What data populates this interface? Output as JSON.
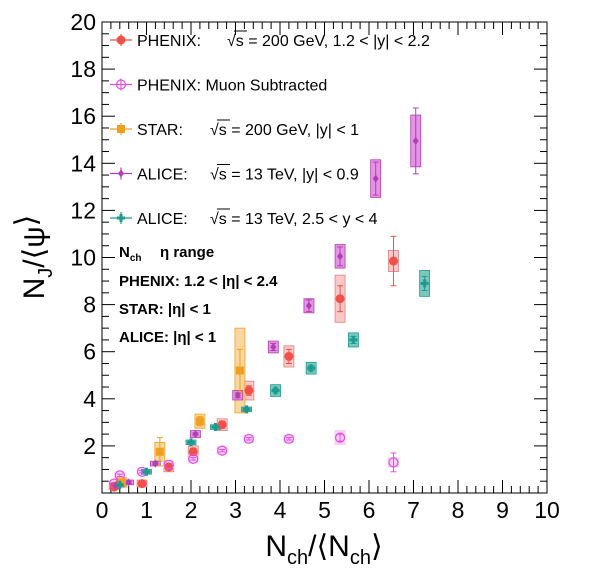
{
  "chart_data": {
    "type": "scatter",
    "xlabel": "N_ch/⟨N_ch⟩",
    "ylabel": "N_J/ψ/⟨N_J/ψ⟩",
    "xlim": [
      0,
      10
    ],
    "ylim": [
      0,
      20
    ],
    "x_ticks": [
      "0",
      "1",
      "2",
      "3",
      "4",
      "5",
      "6",
      "7",
      "8",
      "9",
      "10"
    ],
    "y_ticks": [
      "2",
      "4",
      "6",
      "8",
      "10",
      "12",
      "14",
      "16",
      "18",
      "20"
    ],
    "grid": false,
    "legend_position": "top-left",
    "colors": {
      "phenix": "#f0504a",
      "phenix_muon": "#e050e0",
      "star": "#f0a020",
      "alice_mid": "#b040b0",
      "alice_fwd": "#209a90",
      "phenix_box_fill": "#f8c0c0",
      "phenix_box_edge": "#e08080",
      "muon_box_fill": "#f8c8f8",
      "star_box_fill": "#f8d090",
      "alice_mid_box_fill": "#e080e0",
      "alice_fwd_box_fill": "#60c0b0"
    },
    "legend": [
      {
        "series": "phenix",
        "label_prefix": "PHENIX:",
        "label_rest": "√s = 200 GeV, 1.2 < |y| < 2.2"
      },
      {
        "series": "phenix_muon",
        "label_prefix": "PHENIX: Muon Subtracted",
        "label_rest": ""
      },
      {
        "series": "star",
        "label_prefix": "STAR:",
        "label_rest": "√s = 200 GeV, |y| < 1"
      },
      {
        "series": "alice_mid",
        "label_prefix": "ALICE:",
        "label_rest": "√s = 13 TeV, |y| < 0.9"
      },
      {
        "series": "alice_fwd",
        "label_prefix": "ALICE:",
        "label_rest": "√s = 13 TeV, 2.5 < y < 4"
      }
    ],
    "eta_table": {
      "header_nch": "N_ch",
      "header_range": "η range",
      "rows": [
        "PHENIX: 1.2 < |η| < 2.4",
        "STAR: |η| < 1",
        "ALICE: |η| < 1"
      ]
    },
    "series": [
      {
        "key": "phenix",
        "marker": "filled-circle",
        "points": [
          {
            "x": 0.27,
            "y": 0.25,
            "ey": 0.05,
            "sy": 0.1
          },
          {
            "x": 0.4,
            "y": 0.4,
            "ey": 0.05,
            "sy": 0.1
          },
          {
            "x": 0.9,
            "y": 0.4,
            "ey": 0.1,
            "sy": 0.15
          },
          {
            "x": 1.5,
            "y": 1.1,
            "ey": 0.1,
            "sy": 0.2
          },
          {
            "x": 2.05,
            "y": 1.75,
            "ey": 0.15,
            "sy": 0.25
          },
          {
            "x": 2.7,
            "y": 2.9,
            "ey": 0.15,
            "sy": 0.25
          },
          {
            "x": 3.3,
            "y": 4.35,
            "ey": 0.2,
            "sy": 0.4
          },
          {
            "x": 4.2,
            "y": 5.8,
            "ey": 0.3,
            "sy": 0.45
          },
          {
            "x": 5.35,
            "y": 8.25,
            "ey": 0.55,
            "sy": 1.0
          },
          {
            "x": 6.55,
            "y": 9.85,
            "ey": 1.05,
            "sy": 0.45
          }
        ]
      },
      {
        "key": "phenix_muon",
        "marker": "open-circle",
        "points": [
          {
            "x": 0.27,
            "y": 0.4,
            "ey": 0.05,
            "sy": 0.15
          },
          {
            "x": 0.4,
            "y": 0.75,
            "ey": 0.05,
            "sy": 0.15
          },
          {
            "x": 0.9,
            "y": 0.9,
            "ey": 0.05,
            "sy": 0.15
          },
          {
            "x": 1.5,
            "y": 1.2,
            "ey": 0.05,
            "sy": 0.15
          },
          {
            "x": 2.05,
            "y": 1.45,
            "ey": 0.05,
            "sy": 0.15
          },
          {
            "x": 2.7,
            "y": 1.8,
            "ey": 0.05,
            "sy": 0.15
          },
          {
            "x": 3.3,
            "y": 2.3,
            "ey": 0.05,
            "sy": 0.15
          },
          {
            "x": 4.2,
            "y": 2.3,
            "ey": 0.05,
            "sy": 0.15
          },
          {
            "x": 5.35,
            "y": 2.35,
            "ey": 0.15,
            "sy": 0.3
          },
          {
            "x": 6.55,
            "y": 1.3,
            "ey": 0.4,
            "sy": 0.2
          }
        ]
      },
      {
        "key": "star",
        "marker": "filled-square",
        "points": [
          {
            "x": 0.45,
            "y": 0.45,
            "ey": 0.1,
            "sy": 0.2
          },
          {
            "x": 1.3,
            "y": 1.75,
            "ey": 0.6,
            "sy": 0.4
          },
          {
            "x": 2.2,
            "y": 3.05,
            "ey": 0.2,
            "sy": 0.3
          },
          {
            "x": 3.1,
            "y": 5.2,
            "ey": 0.9,
            "sy": 1.8
          }
        ]
      },
      {
        "key": "alice_mid",
        "marker": "diamond",
        "points": [
          {
            "x": 0.3,
            "y": 0.3,
            "ey": 0.05,
            "sy": 0.1
          },
          {
            "x": 0.6,
            "y": 0.45,
            "ey": 0.05,
            "sy": 0.1
          },
          {
            "x": 1.2,
            "y": 1.25,
            "ey": 0.05,
            "sy": 0.1
          },
          {
            "x": 2.1,
            "y": 2.5,
            "ey": 0.05,
            "sy": 0.15
          },
          {
            "x": 3.05,
            "y": 4.15,
            "ey": 0.1,
            "sy": 0.2
          },
          {
            "x": 3.85,
            "y": 6.2,
            "ey": 0.15,
            "sy": 0.25
          },
          {
            "x": 4.65,
            "y": 7.95,
            "ey": 0.25,
            "sy": 0.3
          },
          {
            "x": 5.35,
            "y": 10.05,
            "ey": 0.4,
            "sy": 0.5
          },
          {
            "x": 6.15,
            "y": 13.35,
            "ey": 0.7,
            "sy": 0.8
          },
          {
            "x": 7.05,
            "y": 14.95,
            "ey": 1.4,
            "sy": 1.1
          }
        ]
      },
      {
        "key": "alice_fwd",
        "marker": "cross",
        "points": [
          {
            "x": 0.4,
            "y": 0.35,
            "ey": 0.05,
            "sy": 0.1
          },
          {
            "x": 1.0,
            "y": 0.9,
            "ey": 0.05,
            "sy": 0.1
          },
          {
            "x": 2.0,
            "y": 2.15,
            "ey": 0.05,
            "sy": 0.1
          },
          {
            "x": 2.55,
            "y": 2.8,
            "ey": 0.05,
            "sy": 0.1
          },
          {
            "x": 3.25,
            "y": 3.55,
            "ey": 0.05,
            "sy": 0.1
          },
          {
            "x": 3.9,
            "y": 4.35,
            "ey": 0.1,
            "sy": 0.25
          },
          {
            "x": 4.7,
            "y": 5.3,
            "ey": 0.1,
            "sy": 0.25
          },
          {
            "x": 5.65,
            "y": 6.5,
            "ey": 0.15,
            "sy": 0.3
          },
          {
            "x": 7.25,
            "y": 8.9,
            "ey": 0.3,
            "sy": 0.55
          }
        ]
      }
    ]
  }
}
